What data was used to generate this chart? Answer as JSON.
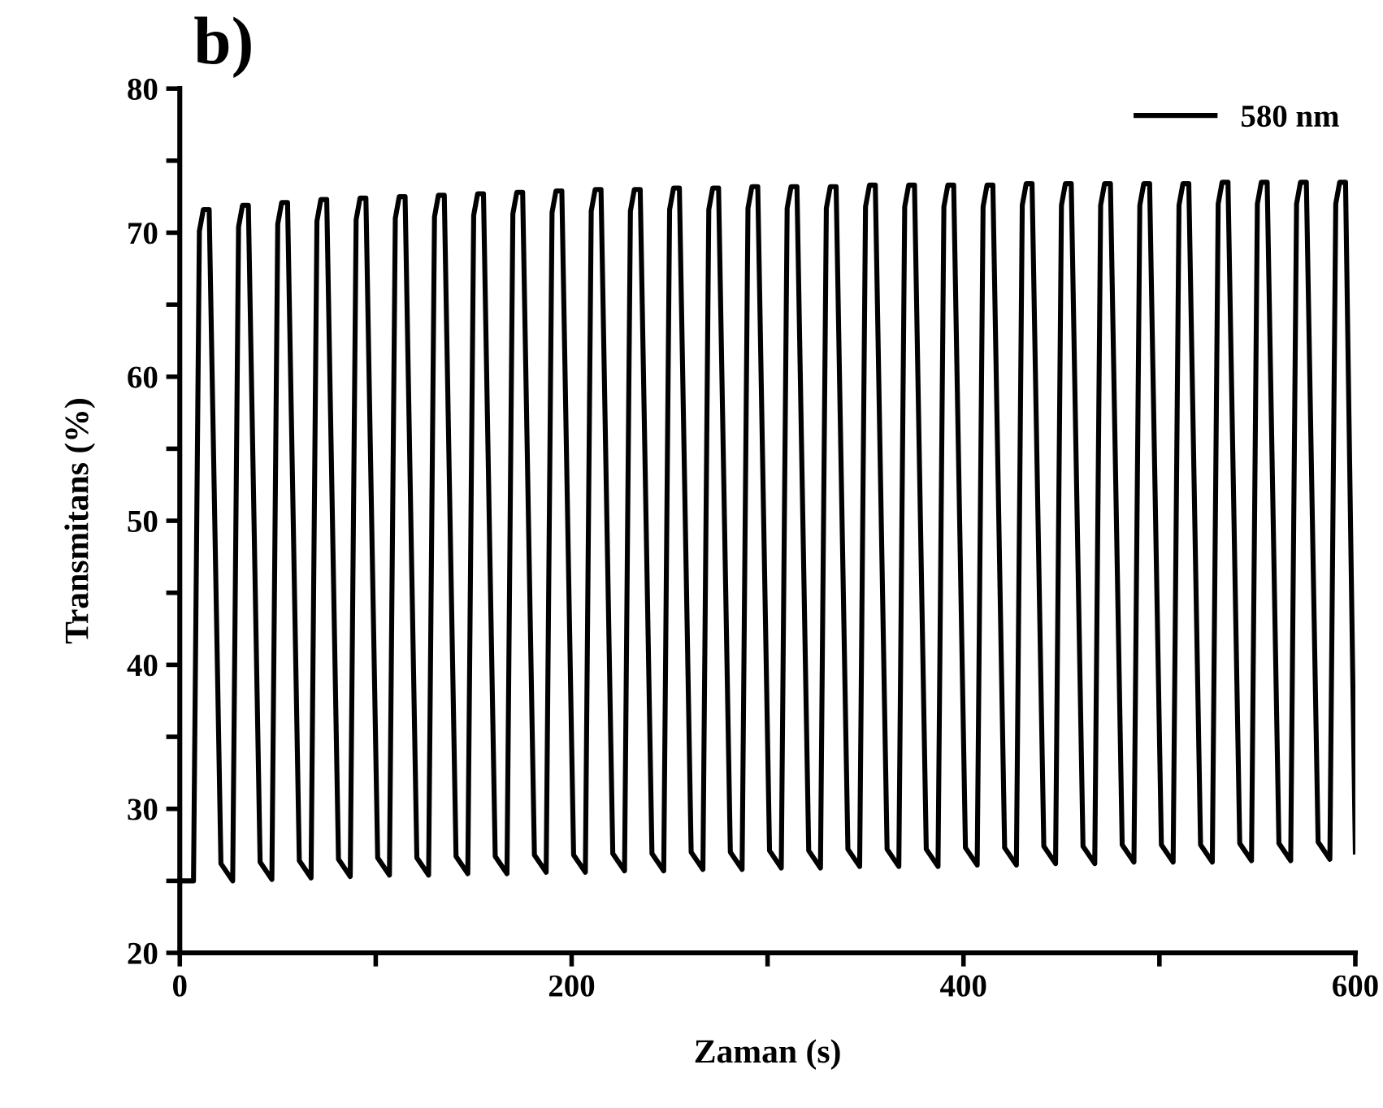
{
  "chart_data": {
    "type": "line",
    "title": "b)",
    "xlabel": "Zaman (s)",
    "ylabel": "Transmitans (%)",
    "xlim": [
      0,
      600
    ],
    "ylim": [
      20,
      80
    ],
    "xticks": [
      0,
      {
        "value": 100,
        "label": null
      },
      200,
      {
        "value": 300,
        "label": null
      },
      400,
      {
        "value": 500,
        "label": null
      },
      600
    ],
    "yticks": [
      20,
      {
        "value": 25,
        "label": null
      },
      30,
      {
        "value": 35,
        "label": null
      },
      40,
      {
        "value": 45,
        "label": null
      },
      50,
      {
        "value": 55,
        "label": null
      },
      60,
      {
        "value": 65,
        "label": null
      },
      70,
      {
        "value": 75,
        "label": null
      },
      80
    ],
    "grid": false,
    "legend": "top right",
    "marker": "none",
    "line_style": "solid",
    "series": [
      {
        "name": "580 nm",
        "color": "#000000",
        "x": [
          0,
          7,
          10,
          12,
          15,
          21,
          27,
          30,
          32,
          35,
          41,
          47,
          50,
          52,
          55,
          61,
          67,
          70,
          72,
          75,
          81,
          87,
          90,
          92,
          95,
          101,
          107,
          110,
          112,
          115,
          121,
          127,
          130,
          132,
          135,
          141,
          147,
          150,
          152,
          155,
          161,
          167,
          170,
          172,
          175,
          181,
          187,
          190,
          192,
          195,
          201,
          207,
          210,
          212,
          215,
          221,
          227,
          230,
          232,
          235,
          241,
          247,
          250,
          252,
          255,
          261,
          267,
          270,
          272,
          275,
          281,
          287,
          290,
          292,
          295,
          301,
          307,
          310,
          312,
          315,
          321,
          327,
          330,
          332,
          335,
          341,
          347,
          350,
          352,
          355,
          361,
          367,
          370,
          372,
          375,
          381,
          387,
          390,
          392,
          395,
          401,
          407,
          410,
          412,
          415,
          421,
          427,
          430,
          432,
          435,
          441,
          447,
          450,
          452,
          455,
          461,
          467,
          470,
          472,
          475,
          481,
          487,
          490,
          492,
          495,
          501,
          507,
          510,
          512,
          515,
          521,
          527,
          530,
          532,
          535,
          541,
          547,
          550,
          552,
          555,
          561,
          567,
          570,
          572,
          575,
          581,
          587,
          590,
          592,
          595,
          600
        ],
        "values": [
          25.0,
          25.0,
          70.1,
          71.6,
          71.6,
          26.2,
          25.0,
          70.4,
          71.9,
          71.9,
          26.3,
          25.1,
          70.6,
          72.1,
          72.1,
          26.4,
          25.2,
          70.8,
          72.3,
          72.3,
          26.5,
          25.3,
          70.9,
          72.4,
          72.4,
          26.6,
          25.4,
          71.0,
          72.5,
          72.5,
          26.6,
          25.4,
          71.1,
          72.6,
          72.6,
          26.7,
          25.5,
          71.2,
          72.7,
          72.7,
          26.7,
          25.5,
          71.3,
          72.8,
          72.8,
          26.8,
          25.6,
          71.4,
          72.9,
          72.9,
          26.8,
          25.6,
          71.5,
          73.0,
          73.0,
          26.9,
          25.7,
          71.5,
          73.0,
          73.0,
          26.9,
          25.7,
          71.6,
          73.1,
          73.1,
          27.0,
          25.8,
          71.6,
          73.1,
          73.1,
          27.0,
          25.8,
          71.7,
          73.2,
          73.2,
          27.1,
          25.9,
          71.7,
          73.2,
          73.2,
          27.1,
          25.9,
          71.7,
          73.2,
          73.2,
          27.2,
          26.0,
          71.8,
          73.3,
          73.3,
          27.2,
          26.0,
          71.8,
          73.3,
          73.3,
          27.2,
          26.0,
          71.8,
          73.3,
          73.3,
          27.3,
          26.1,
          71.8,
          73.3,
          73.3,
          27.3,
          26.1,
          71.9,
          73.4,
          73.4,
          27.4,
          26.2,
          71.9,
          73.4,
          73.4,
          27.4,
          26.2,
          71.9,
          73.4,
          73.4,
          27.5,
          26.3,
          71.9,
          73.4,
          73.4,
          27.5,
          26.3,
          71.9,
          73.4,
          73.4,
          27.5,
          26.3,
          72.0,
          73.5,
          73.5,
          27.6,
          26.4,
          72.0,
          73.5,
          73.5,
          27.6,
          26.4,
          72.0,
          73.5,
          73.5,
          27.7,
          26.5,
          72.0,
          73.5,
          73.5,
          27.0
        ]
      }
    ]
  }
}
